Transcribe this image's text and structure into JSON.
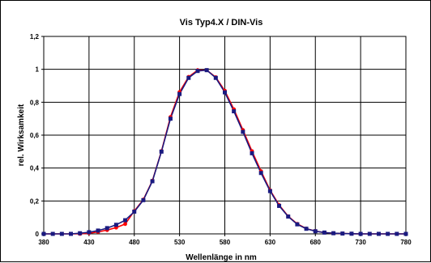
{
  "chart_data": {
    "type": "line",
    "title": "Vis Typ4.X / DIN-Vis",
    "xlabel": "Wellenlänge in nm",
    "ylabel": "rel. Wirksamkeit",
    "xlim": [
      380,
      780
    ],
    "ylim": [
      0,
      1.2
    ],
    "x_ticks": [
      "380",
      "430",
      "480",
      "530",
      "580",
      "630",
      "680",
      "730",
      "780"
    ],
    "y_ticks": [
      "0",
      "0,2",
      "0,4",
      "0,6",
      "0,8",
      "1",
      "1,2"
    ],
    "grid": true,
    "legend": "none",
    "series": [
      {
        "color": "#ff0000",
        "marker": "circle",
        "x": [
          380,
          390,
          400,
          410,
          420,
          430,
          440,
          450,
          460,
          470,
          480,
          490,
          500,
          510,
          520,
          530,
          540,
          550,
          560,
          570,
          580,
          590,
          600,
          610,
          620,
          630,
          640,
          650,
          660,
          670,
          680,
          690,
          700,
          710,
          720,
          730,
          740,
          750,
          760,
          770,
          780
        ],
        "y": [
          0,
          0,
          0,
          0,
          0,
          0.004,
          0.012,
          0.023,
          0.038,
          0.06,
          0.139,
          0.208,
          0.323,
          0.503,
          0.71,
          0.862,
          0.954,
          0.995,
          0.995,
          0.952,
          0.87,
          0.757,
          0.631,
          0.503,
          0.381,
          0.265,
          0.175,
          0.107,
          0.061,
          0.032,
          0.017,
          0.008,
          0.004,
          0.002,
          0.001,
          0,
          0,
          0,
          0,
          0,
          0
        ]
      },
      {
        "color": "#1a1a80",
        "marker": "square",
        "x": [
          380,
          390,
          400,
          410,
          420,
          430,
          440,
          450,
          460,
          470,
          480,
          490,
          500,
          510,
          520,
          530,
          540,
          550,
          560,
          570,
          580,
          590,
          600,
          610,
          620,
          630,
          640,
          650,
          660,
          670,
          680,
          690,
          700,
          710,
          720,
          730,
          740,
          750,
          760,
          770,
          780
        ],
        "y": [
          0,
          0,
          0,
          0,
          0.004,
          0.01,
          0.02,
          0.035,
          0.055,
          0.083,
          0.135,
          0.205,
          0.32,
          0.5,
          0.7,
          0.85,
          0.948,
          0.99,
          0.995,
          0.948,
          0.86,
          0.745,
          0.62,
          0.49,
          0.37,
          0.26,
          0.17,
          0.105,
          0.058,
          0.031,
          0.016,
          0.008,
          0.004,
          0.002,
          0.001,
          0,
          0,
          0,
          0,
          0,
          0
        ]
      }
    ]
  }
}
